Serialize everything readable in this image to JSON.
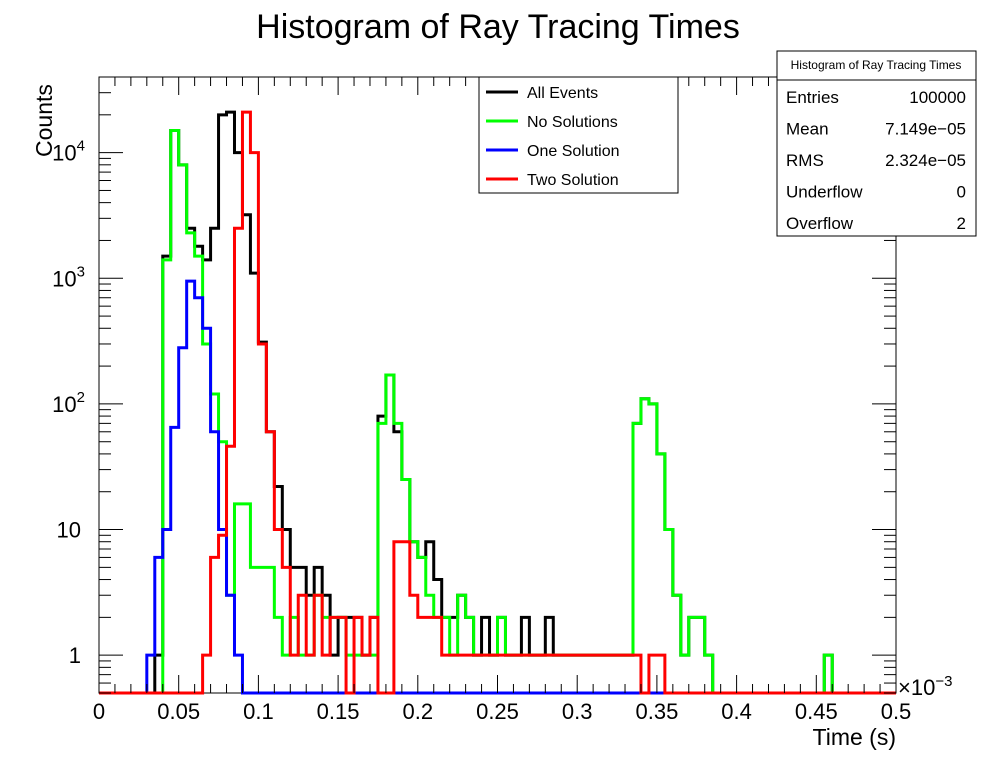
{
  "chart_data": {
    "type": "histogram",
    "title": "Histogram of Ray Tracing Times",
    "xlabel": "Time (s)",
    "ylabel": "Counts",
    "x_multiplier": "×10",
    "x_multiplier_exp": "−3",
    "xlim": [
      0,
      0.5
    ],
    "ylim": [
      0.5,
      40000
    ],
    "yscale": "log",
    "grid": false,
    "legend_position": "top",
    "bin_width": 0.005,
    "x_ticks": [
      "0",
      "0.05",
      "0.1",
      "0.15",
      "0.2",
      "0.25",
      "0.3",
      "0.35",
      "0.4",
      "0.45",
      "0.5"
    ],
    "y_ticks": [
      {
        "value": 1,
        "base": "1",
        "exp": ""
      },
      {
        "value": 10,
        "base": "10",
        "exp": ""
      },
      {
        "value": 100,
        "base": "10",
        "exp": "2"
      },
      {
        "value": 1000,
        "base": "10",
        "exp": "3"
      },
      {
        "value": 10000,
        "base": "10",
        "exp": "4"
      }
    ],
    "series": [
      {
        "name": "All Events",
        "color": "#000000",
        "counts": [
          0,
          0,
          0,
          0,
          0,
          0,
          0,
          1,
          1500,
          15000,
          8000,
          2500,
          1800,
          1400,
          2500,
          20000,
          21000,
          10000,
          3200,
          1100,
          310,
          60,
          22,
          10,
          5,
          5,
          3,
          5,
          3,
          1,
          2,
          2,
          2,
          1,
          2,
          80,
          170,
          60,
          25,
          8,
          6,
          8,
          4,
          2,
          2,
          3,
          2,
          1,
          2,
          1,
          2,
          1,
          1,
          2,
          1,
          1,
          2,
          1,
          1,
          1,
          1,
          1,
          1,
          1,
          1,
          1,
          1,
          70,
          110,
          100,
          40,
          10,
          3,
          1,
          2,
          2,
          1,
          0,
          0,
          0,
          0,
          0,
          0,
          0,
          0,
          0,
          0,
          0,
          0,
          0,
          0,
          1,
          0,
          0,
          0,
          0,
          0,
          0,
          0,
          0
        ]
      },
      {
        "name": "No Solutions",
        "color": "#00ff00",
        "counts": [
          0,
          0,
          0,
          0,
          0,
          0,
          0,
          0,
          1400,
          15000,
          8000,
          2300,
          1500,
          300,
          120,
          50,
          3,
          16,
          16,
          5,
          5,
          5,
          2,
          1,
          2,
          1,
          1,
          3,
          2,
          2,
          2,
          1,
          1,
          1,
          1,
          70,
          170,
          70,
          25,
          8,
          6,
          3,
          2,
          2,
          1,
          3,
          2,
          1,
          1,
          1,
          2,
          1,
          1,
          1,
          1,
          1,
          1,
          1,
          1,
          1,
          1,
          1,
          1,
          1,
          1,
          1,
          1,
          70,
          110,
          100,
          40,
          10,
          3,
          1,
          2,
          2,
          1,
          0,
          0,
          0,
          0,
          0,
          0,
          0,
          0,
          0,
          0,
          0,
          0,
          0,
          0,
          1,
          0,
          0,
          0,
          0,
          0,
          0,
          0,
          0
        ]
      },
      {
        "name": "One Solution",
        "color": "#0000ff",
        "counts": [
          0,
          0,
          0,
          0,
          0,
          0,
          1,
          6,
          10,
          65,
          280,
          950,
          700,
          400,
          60,
          10,
          3,
          1,
          0,
          0,
          0,
          0,
          0,
          0,
          0,
          0,
          0,
          0,
          0,
          0,
          0,
          0,
          0,
          0,
          0,
          0,
          0,
          0,
          0,
          0,
          0,
          0,
          0,
          0,
          0,
          0,
          0,
          0,
          0,
          0,
          0,
          0,
          0,
          0,
          0,
          0,
          0,
          0,
          0,
          0,
          0,
          0,
          0,
          0,
          0,
          0,
          0,
          0,
          0,
          0,
          0,
          0,
          0,
          0,
          0,
          0,
          0,
          0,
          0,
          0,
          0,
          0,
          0,
          0,
          0,
          0,
          0,
          0,
          0,
          0,
          0,
          0,
          0,
          0,
          0,
          0,
          0,
          0,
          0,
          0
        ]
      },
      {
        "name": "Two Solution",
        "color": "#ff0000",
        "counts": [
          0,
          0,
          0,
          0,
          0,
          0,
          0,
          0,
          0,
          0,
          0,
          0,
          0,
          1,
          6,
          9,
          46,
          2500,
          21000,
          10000,
          300,
          60,
          10,
          5,
          1,
          3,
          1,
          3,
          1,
          2,
          2,
          0,
          2,
          1,
          2,
          0,
          0,
          8,
          8,
          3,
          2,
          2,
          2,
          1,
          1,
          1,
          1,
          1,
          1,
          1,
          1,
          1,
          1,
          1,
          1,
          1,
          1,
          1,
          1,
          1,
          1,
          1,
          1,
          1,
          1,
          1,
          1,
          1,
          0,
          1,
          1,
          0,
          0,
          0,
          0,
          0,
          0,
          0,
          0,
          0,
          0,
          0,
          0,
          0,
          0,
          0,
          0,
          0,
          0,
          0,
          0,
          0,
          0,
          0,
          0,
          0,
          0,
          0,
          0,
          0
        ]
      }
    ],
    "stats_box": {
      "title": "Histogram of Ray Tracing Times",
      "rows": [
        {
          "label": "Entries",
          "value": "100000"
        },
        {
          "label": "Mean",
          "value": "7.149e−05"
        },
        {
          "label": "RMS",
          "value": "2.324e−05"
        },
        {
          "label": "Underflow",
          "value": "0"
        },
        {
          "label": "Overflow",
          "value": "2"
        }
      ]
    }
  }
}
